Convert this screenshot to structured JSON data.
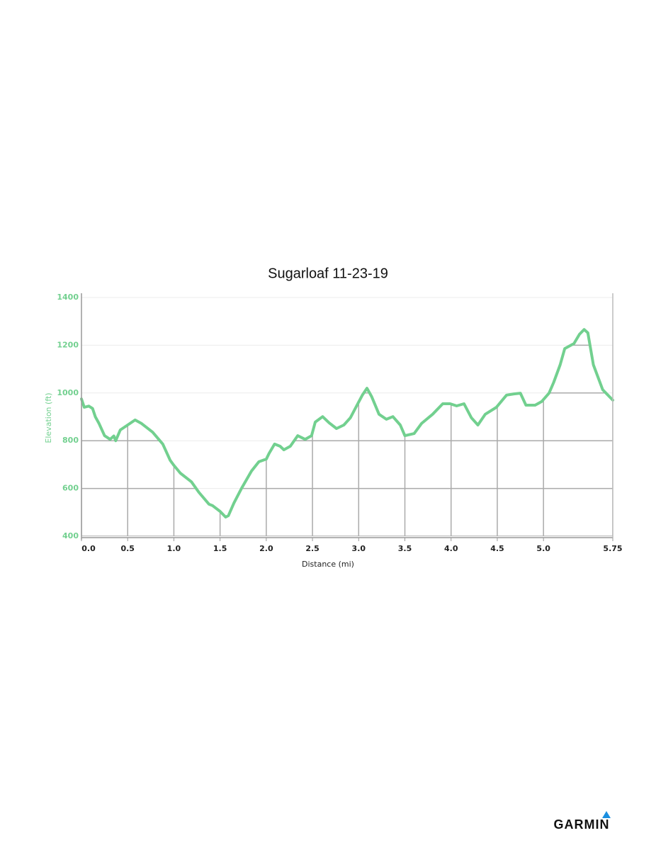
{
  "chart_data": {
    "type": "line",
    "title": "Sugarloaf 11-23-19",
    "x_label": "Distance (mi)",
    "y_label": "Elevation (ft)",
    "color": "#72d08f",
    "grid": true,
    "x": [
      0,
      0.03,
      0.08,
      0.12,
      0.15,
      0.19,
      0.25,
      0.31,
      0.35,
      0.37,
      0.42,
      0.5,
      0.58,
      0.65,
      0.77,
      0.88,
      0.96,
      1.0,
      1.07,
      1.19,
      1.27,
      1.38,
      1.42,
      1.5,
      1.56,
      1.59,
      1.65,
      1.73,
      1.84,
      1.92,
      2.0,
      2.03,
      2.09,
      2.15,
      2.19,
      2.26,
      2.34,
      2.42,
      2.49,
      2.53,
      2.61,
      2.68,
      2.76,
      2.84,
      2.91,
      2.99,
      3.04,
      3.09,
      3.14,
      3.22,
      3.3,
      3.37,
      3.45,
      3.5,
      3.6,
      3.68,
      3.8,
      3.91,
      3.99,
      4.06,
      4.14,
      4.22,
      4.29,
      4.37,
      4.49,
      4.6,
      4.68,
      4.75,
      4.81,
      4.91,
      4.98,
      5.06,
      5.11,
      5.18,
      5.23,
      5.33,
      5.39,
      5.44,
      5.48,
      5.54,
      5.64,
      5.75
    ],
    "values": [
      975,
      940,
      945,
      935,
      900,
      872,
      821,
      806,
      820,
      800,
      845,
      866,
      887,
      872,
      836,
      786,
      718,
      697,
      664,
      628,
      584,
      534,
      528,
      504,
      480,
      486,
      539,
      599,
      673,
      712,
      723,
      747,
      786,
      777,
      762,
      777,
      821,
      806,
      821,
      878,
      901,
      875,
      851,
      866,
      896,
      955,
      991,
      1020,
      985,
      911,
      890,
      901,
      866,
      821,
      830,
      872,
      911,
      955,
      955,
      946,
      955,
      896,
      866,
      911,
      940,
      991,
      996,
      999,
      949,
      949,
      964,
      999,
      1044,
      1118,
      1186,
      1207,
      1246,
      1266,
      1252,
      1118,
      1014,
      970
    ],
    "xlim": [
      0,
      5.75
    ],
    "ylim": [
      400,
      1400
    ],
    "xticks": [
      {
        "value": 0,
        "label": "0.0"
      },
      0.5,
      {
        "value": 1,
        "label": "1.0"
      },
      1.5,
      {
        "value": 2,
        "label": "2.0"
      },
      2.5,
      {
        "value": 3,
        "label": "3.0"
      },
      3.5,
      {
        "value": 4,
        "label": "4.0"
      },
      4.5,
      {
        "value": 5,
        "label": "5.0"
      },
      5.75
    ],
    "yticks": [
      400,
      600,
      800,
      1000,
      1200,
      1400
    ]
  },
  "brand": "GARMIN"
}
